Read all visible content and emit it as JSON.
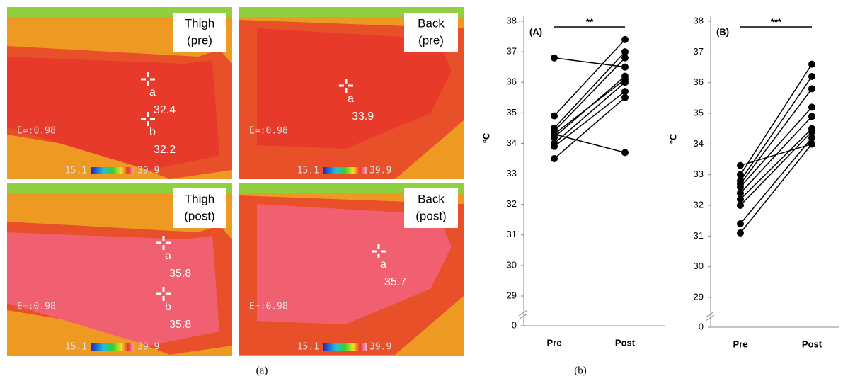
{
  "images": [
    {
      "label": [
        "Thigh",
        "(pre)"
      ],
      "emissivity": "E=:0.98",
      "scale": [
        "15.1",
        "39.9"
      ],
      "points": [
        {
          "id": "a",
          "value": "32.4"
        },
        {
          "id": "b",
          "value": "32.2"
        }
      ]
    },
    {
      "label": [
        "Back",
        "(pre)"
      ],
      "emissivity": "E=:0.98",
      "scale": [
        "15.1",
        "39.9"
      ],
      "points": [
        {
          "id": "a",
          "value": "33.9"
        }
      ]
    },
    {
      "label": [
        "Thigh",
        "(post)"
      ],
      "emissivity": "E=:0.98",
      "scale": [
        "15.1",
        "39.9"
      ],
      "points": [
        {
          "id": "a",
          "value": "35.8"
        },
        {
          "id": "b",
          "value": "35.8"
        }
      ]
    },
    {
      "label": [
        "Back",
        "(post)"
      ],
      "emissivity": "E=:0.98",
      "scale": [
        "15.1",
        "39.9"
      ],
      "points": [
        {
          "id": "a",
          "value": "35.7"
        }
      ]
    }
  ],
  "captions": [
    "(a)",
    "(b)"
  ],
  "chart_data": [
    {
      "type": "paired",
      "title": "(A)",
      "significance": "**",
      "y_label": "°C",
      "categories": [
        "Pre",
        "Post"
      ],
      "values": [
        [
          36.8,
          36.5
        ],
        [
          34.9,
          37.4
        ],
        [
          34.5,
          37.0
        ],
        [
          34.4,
          36.8
        ],
        [
          34.3,
          33.7
        ],
        [
          34.2,
          36.2
        ],
        [
          34.0,
          36.0
        ],
        [
          33.9,
          35.7
        ],
        [
          33.5,
          35.5
        ],
        [
          34.3,
          36.1
        ]
      ],
      "color": "#000000",
      "ylim": [
        0,
        38
      ],
      "axis_break": [
        0,
        29
      ],
      "yticks": [
        0,
        29,
        30,
        31,
        32,
        33,
        34,
        35,
        36,
        37,
        38
      ]
    },
    {
      "type": "paired",
      "title": "(B)",
      "significance": "***",
      "y_label": "°C",
      "categories": [
        "Pre",
        "Post"
      ],
      "values": [
        [
          33.3,
          34.0
        ],
        [
          33.0,
          36.6
        ],
        [
          32.8,
          36.2
        ],
        [
          32.7,
          35.8
        ],
        [
          32.6,
          35.2
        ],
        [
          32.4,
          34.9
        ],
        [
          32.2,
          34.5
        ],
        [
          32.0,
          34.4
        ],
        [
          31.4,
          34.2
        ],
        [
          31.1,
          34.0
        ]
      ],
      "color": "#000000",
      "ylim": [
        0,
        38
      ],
      "axis_break": [
        0,
        29
      ],
      "yticks": [
        0,
        29,
        30,
        31,
        32,
        33,
        34,
        35,
        36,
        37,
        38
      ]
    }
  ]
}
